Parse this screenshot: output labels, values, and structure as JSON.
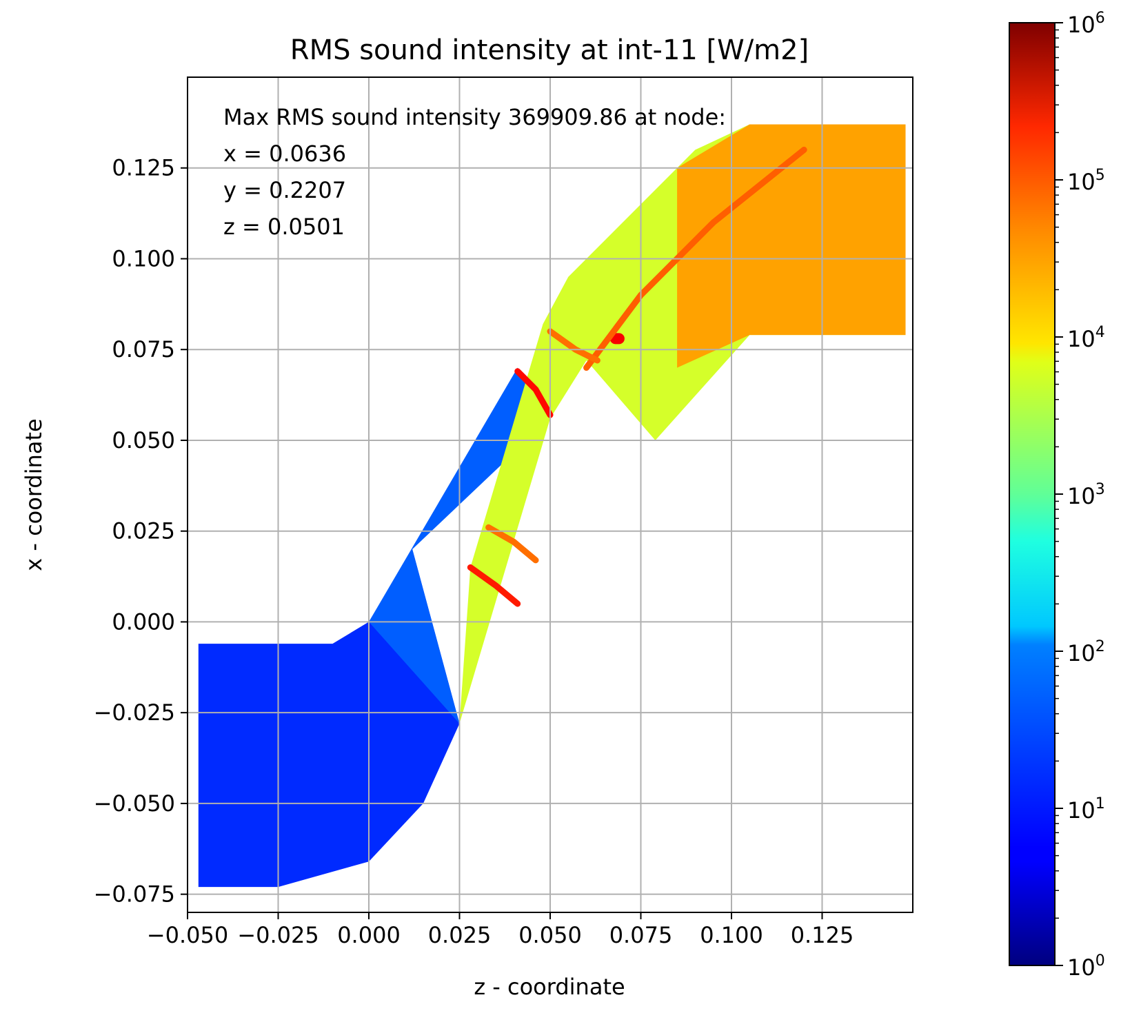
{
  "chart_data": {
    "type": "heatmap",
    "title": "RMS sound intensity at int-11 [W/m2]",
    "xlabel": "z - coordinate",
    "ylabel": "x - coordinate",
    "xlim": [
      -0.05,
      0.15
    ],
    "ylim": [
      -0.08,
      0.15
    ],
    "xticks": [
      -0.05,
      -0.025,
      0.0,
      0.025,
      0.05,
      0.075,
      0.1,
      0.125
    ],
    "xtick_labels": [
      "−0.050",
      "−0.025",
      "0.000",
      "0.025",
      "0.050",
      "0.075",
      "0.100",
      "0.125"
    ],
    "yticks": [
      -0.075,
      -0.05,
      -0.025,
      0.0,
      0.025,
      0.05,
      0.075,
      0.1,
      0.125
    ],
    "ytick_labels": [
      "−0.075",
      "−0.050",
      "−0.025",
      "0.000",
      "0.025",
      "0.050",
      "0.075",
      "0.100",
      "0.125"
    ],
    "grid": true,
    "annotation": {
      "line1": "Max RMS sound intensity 369909.86 at node:",
      "line2": "x = 0.0636",
      "line3": "y = 0.2207",
      "line4": "z = 0.0501"
    },
    "colorbar": {
      "scale": "log",
      "colormap": "jet",
      "range": [
        1,
        1000000
      ],
      "ticks": [
        {
          "base": "10",
          "exp": "0"
        },
        {
          "base": "10",
          "exp": "1"
        },
        {
          "base": "10",
          "exp": "2"
        },
        {
          "base": "10",
          "exp": "3"
        },
        {
          "base": "10",
          "exp": "4"
        },
        {
          "base": "10",
          "exp": "5"
        },
        {
          "base": "10",
          "exp": "6"
        }
      ]
    },
    "regions": [
      {
        "name": "inlet-duct",
        "outline": [
          [
            -0.047,
            -0.006
          ],
          [
            -0.01,
            -0.006
          ],
          [
            0.0,
            0.0
          ],
          [
            0.012,
            0.02
          ],
          [
            0.025,
            -0.028
          ],
          [
            0.015,
            -0.05
          ],
          [
            0.0,
            -0.066
          ],
          [
            -0.025,
            -0.073
          ],
          [
            -0.047,
            -0.073
          ]
        ],
        "log_intensity_mean": 1.0
      },
      {
        "name": "blade-passage-lower",
        "outline": [
          [
            0.0,
            0.0
          ],
          [
            0.041,
            0.07
          ],
          [
            0.05,
            0.056
          ],
          [
            0.012,
            0.02
          ],
          [
            0.025,
            -0.028
          ]
        ],
        "log_intensity_mean": 1.3
      },
      {
        "name": "blade-passage-upper",
        "outline": [
          [
            0.025,
            -0.028
          ],
          [
            0.05,
            0.056
          ],
          [
            0.06,
            0.072
          ],
          [
            0.079,
            0.05
          ],
          [
            0.105,
            0.079
          ],
          [
            0.148,
            0.079
          ],
          [
            0.148,
            0.137
          ],
          [
            0.105,
            0.137
          ],
          [
            0.09,
            0.13
          ],
          [
            0.055,
            0.095
          ],
          [
            0.048,
            0.082
          ],
          [
            0.028,
            0.015
          ]
        ],
        "log_intensity_mean": 3.5
      },
      {
        "name": "outlet-duct",
        "outline": [
          [
            0.085,
            0.125
          ],
          [
            0.105,
            0.137
          ],
          [
            0.148,
            0.137
          ],
          [
            0.148,
            0.079
          ],
          [
            0.105,
            0.079
          ],
          [
            0.085,
            0.07
          ]
        ],
        "log_intensity_mean": 4.3
      }
    ],
    "features": [
      {
        "name": "wave-front",
        "points": [
          [
            0.041,
            0.069
          ],
          [
            0.046,
            0.064
          ],
          [
            0.05,
            0.057
          ]
        ],
        "log_intensity": 5.2
      },
      {
        "name": "wave-front",
        "points": [
          [
            0.028,
            0.015
          ],
          [
            0.035,
            0.01
          ],
          [
            0.041,
            0.005
          ]
        ],
        "log_intensity": 5.1
      },
      {
        "name": "hotspot",
        "points": [
          [
            0.068,
            0.078
          ],
          [
            0.069,
            0.078
          ]
        ],
        "log_intensity": 5.3
      },
      {
        "name": "wave-front",
        "points": [
          [
            0.033,
            0.026
          ],
          [
            0.04,
            0.022
          ],
          [
            0.046,
            0.017
          ]
        ],
        "log_intensity": 4.6
      },
      {
        "name": "wake",
        "points": [
          [
            0.06,
            0.07
          ],
          [
            0.075,
            0.09
          ],
          [
            0.095,
            0.11
          ],
          [
            0.12,
            0.13
          ]
        ],
        "log_intensity": 4.7
      },
      {
        "name": "wave-front",
        "points": [
          [
            0.05,
            0.08
          ],
          [
            0.057,
            0.075
          ],
          [
            0.063,
            0.072
          ]
        ],
        "log_intensity": 4.6
      }
    ]
  }
}
